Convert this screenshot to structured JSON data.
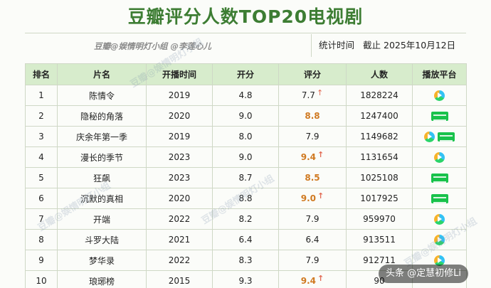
{
  "title": "豆瓣评分人数TOP20电视剧",
  "credit": "豆瓣@娱情明灯小组 @李莲心儿",
  "stat": {
    "label": "统计时间",
    "value": "截止 2025年10月12日"
  },
  "headers": [
    "排名",
    "片名",
    "开播时间",
    "开分",
    "评分",
    "人数",
    "播放平台"
  ],
  "rows": [
    {
      "rank": "1",
      "name": "陈情令",
      "year": "2019",
      "open": "4.8",
      "score": "7.7",
      "highlight": false,
      "arrow": true,
      "count": "1828224",
      "platforms": [
        "tencent-video"
      ]
    },
    {
      "rank": "2",
      "name": "隐秘的角落",
      "year": "2020",
      "open": "9.0",
      "score": "8.8",
      "highlight": true,
      "arrow": false,
      "count": "1247400",
      "platforms": [
        "iqiyi"
      ]
    },
    {
      "rank": "3",
      "name": "庆余年第一季",
      "year": "2019",
      "open": "8.0",
      "score": "7.9",
      "highlight": false,
      "arrow": false,
      "count": "1149682",
      "platforms": [
        "tencent-video",
        "iqiyi"
      ]
    },
    {
      "rank": "4",
      "name": "漫长的季节",
      "year": "2023",
      "open": "9.0",
      "score": "9.4",
      "highlight": true,
      "arrow": true,
      "count": "1131654",
      "platforms": [
        "tencent-video"
      ]
    },
    {
      "rank": "5",
      "name": "狂飙",
      "year": "2023",
      "open": "8.7",
      "score": "8.5",
      "highlight": true,
      "arrow": false,
      "count": "1025108",
      "platforms": [
        "iqiyi"
      ]
    },
    {
      "rank": "6",
      "name": "沉默的真相",
      "year": "2020",
      "open": "8.8",
      "score": "9.0",
      "highlight": true,
      "arrow": true,
      "count": "1017925",
      "platforms": [
        "iqiyi"
      ]
    },
    {
      "rank": "7",
      "name": "开端",
      "year": "2022",
      "open": "8.2",
      "score": "7.9",
      "highlight": false,
      "arrow": false,
      "count": "959970",
      "platforms": [
        "tencent-video"
      ]
    },
    {
      "rank": "8",
      "name": "斗罗大陆",
      "year": "2021",
      "open": "6.4",
      "score": "6.4",
      "highlight": false,
      "arrow": false,
      "count": "913511",
      "platforms": [
        "tencent-video"
      ]
    },
    {
      "rank": "9",
      "name": "梦华录",
      "year": "2022",
      "open": "8.3",
      "score": "7.9",
      "highlight": false,
      "arrow": false,
      "count": "912711",
      "platforms": [
        "tencent-video"
      ]
    },
    {
      "rank": "10",
      "name": "琅琊榜",
      "year": "2015",
      "open": "9.3",
      "score": "9.4",
      "highlight": true,
      "arrow": true,
      "count": "90",
      "platforms": []
    }
  ],
  "arrow_glyph": "↑",
  "footer_badge": "头条 @定慧初修Li",
  "colors": {
    "title": "#3d7d33",
    "header_bg": "#d7eccc",
    "highlight_score": "#d07a22",
    "arrow": "#e26a53"
  }
}
